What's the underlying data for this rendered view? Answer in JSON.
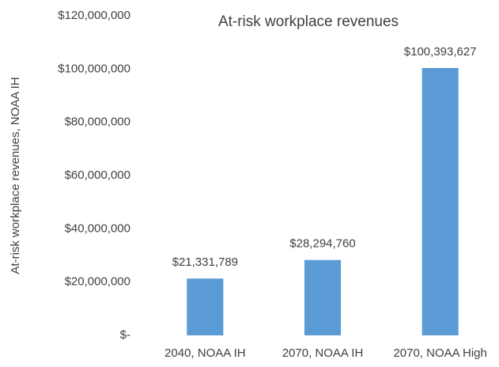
{
  "chart_data": {
    "type": "bar",
    "title": "At-risk workplace revenues",
    "y_label": "At-risk workplace revenues, NOAA IH",
    "categories": [
      "2040, NOAA IH",
      "2070, NOAA IH",
      "2070, NOAA High"
    ],
    "values": [
      21331789,
      28294760,
      100393627
    ],
    "value_labels": [
      "$21,331,789",
      "$28,294,760",
      "$100,393,627"
    ],
    "color": "#5b9bd5",
    "ylim": [
      0,
      120000000
    ],
    "yticks": [
      {
        "value": 0,
        "label": "$-"
      },
      {
        "value": 20000000,
        "label": "$20,000,000"
      },
      {
        "value": 40000000,
        "label": "$40,000,000"
      },
      {
        "value": 60000000,
        "label": "$60,000,000"
      },
      {
        "value": 80000000,
        "label": "$80,000,000"
      },
      {
        "value": 100000000,
        "label": "$100,000,000"
      },
      {
        "value": 120000000,
        "label": "$120,000,000"
      }
    ],
    "grid": false
  }
}
